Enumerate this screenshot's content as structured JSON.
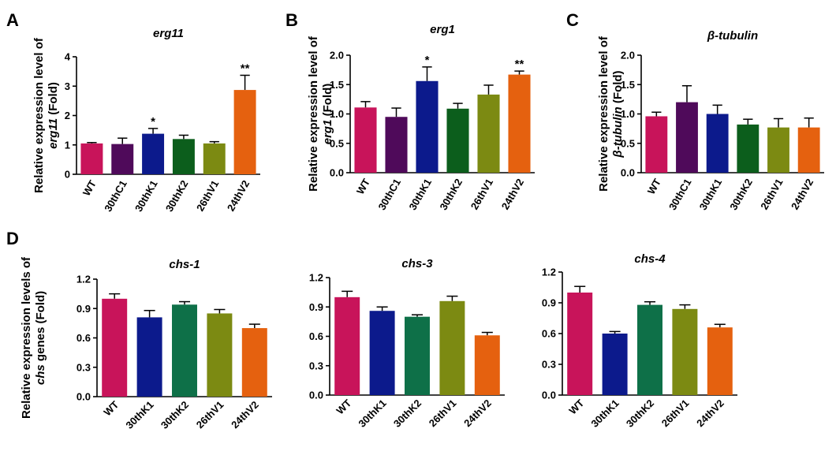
{
  "figure": {
    "panel_letters": [
      "A",
      "B",
      "C",
      "D"
    ]
  },
  "chart_data": [
    {
      "type": "bar",
      "panel": "A",
      "title": "erg11",
      "ylabel_parts": [
        {
          "text": "Relative expression level of"
        },
        {
          "text": "erg11",
          "italic": true
        },
        {
          "text": " (Fold)"
        }
      ],
      "categories": [
        "WT",
        "30thC1",
        "30thK1",
        "30thK2",
        "26thV1",
        "24thV2"
      ],
      "values": [
        1.05,
        1.03,
        1.38,
        1.2,
        1.05,
        2.87
      ],
      "errors": [
        0.03,
        0.2,
        0.18,
        0.13,
        0.06,
        0.5
      ],
      "annotations": [
        "",
        "",
        "*",
        "",
        "",
        "**"
      ],
      "colors": [
        "#c8145a",
        "#4f0a5a",
        "#0c1a8c",
        "#0c5e1c",
        "#7c8a12",
        "#e5610f"
      ],
      "ylim": [
        0,
        4
      ],
      "yticks": [
        0,
        1,
        2,
        3,
        4
      ],
      "ytick_labels": [
        "0",
        "1",
        "2",
        "3",
        "4"
      ]
    },
    {
      "type": "bar",
      "panel": "B",
      "title": "erg1",
      "ylabel_parts": [
        {
          "text": "Relative expression level of"
        },
        {
          "text": "erg1",
          "italic": true
        },
        {
          "text": " (Fold)"
        }
      ],
      "categories": [
        "WT",
        "30thC1",
        "30thK1",
        "30thK2",
        "26thV1",
        "24thV2"
      ],
      "values": [
        1.11,
        0.95,
        1.56,
        1.09,
        1.33,
        1.67
      ],
      "errors": [
        0.1,
        0.15,
        0.24,
        0.09,
        0.16,
        0.06
      ],
      "annotations": [
        "",
        "",
        "*",
        "",
        "",
        "**"
      ],
      "colors": [
        "#c8145a",
        "#4f0a5a",
        "#0c1a8c",
        "#0c5e1c",
        "#7c8a12",
        "#e5610f"
      ],
      "ylim": [
        0,
        2
      ],
      "yticks": [
        0,
        0.5,
        1,
        1.5,
        2
      ],
      "ytick_labels": [
        "0.0",
        "0.5",
        "1.0",
        "1.5",
        "2.0"
      ]
    },
    {
      "type": "bar",
      "panel": "C",
      "title": "β-tubulin",
      "ylabel_parts": [
        {
          "text": "Relative expression level of"
        },
        {
          "text": "β-tubulin",
          "italic": true
        },
        {
          "text": " (Fold)"
        }
      ],
      "categories": [
        "WT",
        "30thC1",
        "30thK1",
        "30thK2",
        "26thV1",
        "24thV2"
      ],
      "values": [
        0.96,
        1.2,
        1.0,
        0.82,
        0.77,
        0.77
      ],
      "errors": [
        0.07,
        0.28,
        0.15,
        0.09,
        0.15,
        0.16
      ],
      "annotations": [
        "",
        "",
        "",
        "",
        "",
        ""
      ],
      "colors": [
        "#c8145a",
        "#4f0a5a",
        "#0c1a8c",
        "#0c5e1c",
        "#7c8a12",
        "#e5610f"
      ],
      "ylim": [
        0,
        2
      ],
      "yticks": [
        0,
        0.5,
        1,
        1.5,
        2
      ],
      "ytick_labels": [
        "0.0",
        "0.5",
        "1.0",
        "1.5",
        "2.0"
      ]
    },
    {
      "type": "bar",
      "panel": "D",
      "title": "chs-1",
      "ylabel_parts": [
        {
          "text": "Relative expression levels of"
        },
        {
          "text": "chs",
          "italic": true
        },
        {
          "text": " genes (Fold)"
        }
      ],
      "categories": [
        "WT",
        "30thK1",
        "30thK2",
        "26thV1",
        "24thV2"
      ],
      "values": [
        1.0,
        0.81,
        0.94,
        0.85,
        0.7
      ],
      "errors": [
        0.05,
        0.07,
        0.03,
        0.04,
        0.04
      ],
      "annotations": [
        "",
        "",
        "",
        "",
        ""
      ],
      "colors": [
        "#c8145a",
        "#0c1a8c",
        "#0e7048",
        "#7c8a12",
        "#e5610f"
      ],
      "ylim": [
        0,
        1.2
      ],
      "yticks": [
        0,
        0.3,
        0.6,
        0.9,
        1.2
      ],
      "ytick_labels": [
        "0.0",
        "0.3",
        "0.6",
        "0.9",
        "1.2"
      ]
    },
    {
      "type": "bar",
      "panel": "",
      "title": "chs-3",
      "categories": [
        "WT",
        "30thK1",
        "30thK2",
        "26thV1",
        "24thV2"
      ],
      "values": [
        1.0,
        0.86,
        0.8,
        0.96,
        0.61
      ],
      "errors": [
        0.06,
        0.04,
        0.02,
        0.05,
        0.03
      ],
      "annotations": [
        "",
        "",
        "",
        "",
        ""
      ],
      "colors": [
        "#c8145a",
        "#0c1a8c",
        "#0e7048",
        "#7c8a12",
        "#e5610f"
      ],
      "ylim": [
        0,
        1.2
      ],
      "yticks": [
        0,
        0.3,
        0.6,
        0.9,
        1.2
      ],
      "ytick_labels": [
        "0.0",
        "0.3",
        "0.6",
        "0.9",
        "1.2"
      ]
    },
    {
      "type": "bar",
      "panel": "",
      "title": "chs-4",
      "categories": [
        "WT",
        "30thK1",
        "30thK2",
        "26thV1",
        "24thV2"
      ],
      "values": [
        1.0,
        0.6,
        0.88,
        0.84,
        0.66
      ],
      "errors": [
        0.06,
        0.02,
        0.03,
        0.04,
        0.03
      ],
      "annotations": [
        "",
        "",
        "",
        "",
        ""
      ],
      "colors": [
        "#c8145a",
        "#0c1a8c",
        "#0e7048",
        "#7c8a12",
        "#e5610f"
      ],
      "ylim": [
        0,
        1.2
      ],
      "yticks": [
        0,
        0.3,
        0.6,
        0.9,
        1.2
      ],
      "ytick_labels": [
        "0.0",
        "0.3",
        "0.6",
        "0.9",
        "1.2"
      ]
    }
  ]
}
